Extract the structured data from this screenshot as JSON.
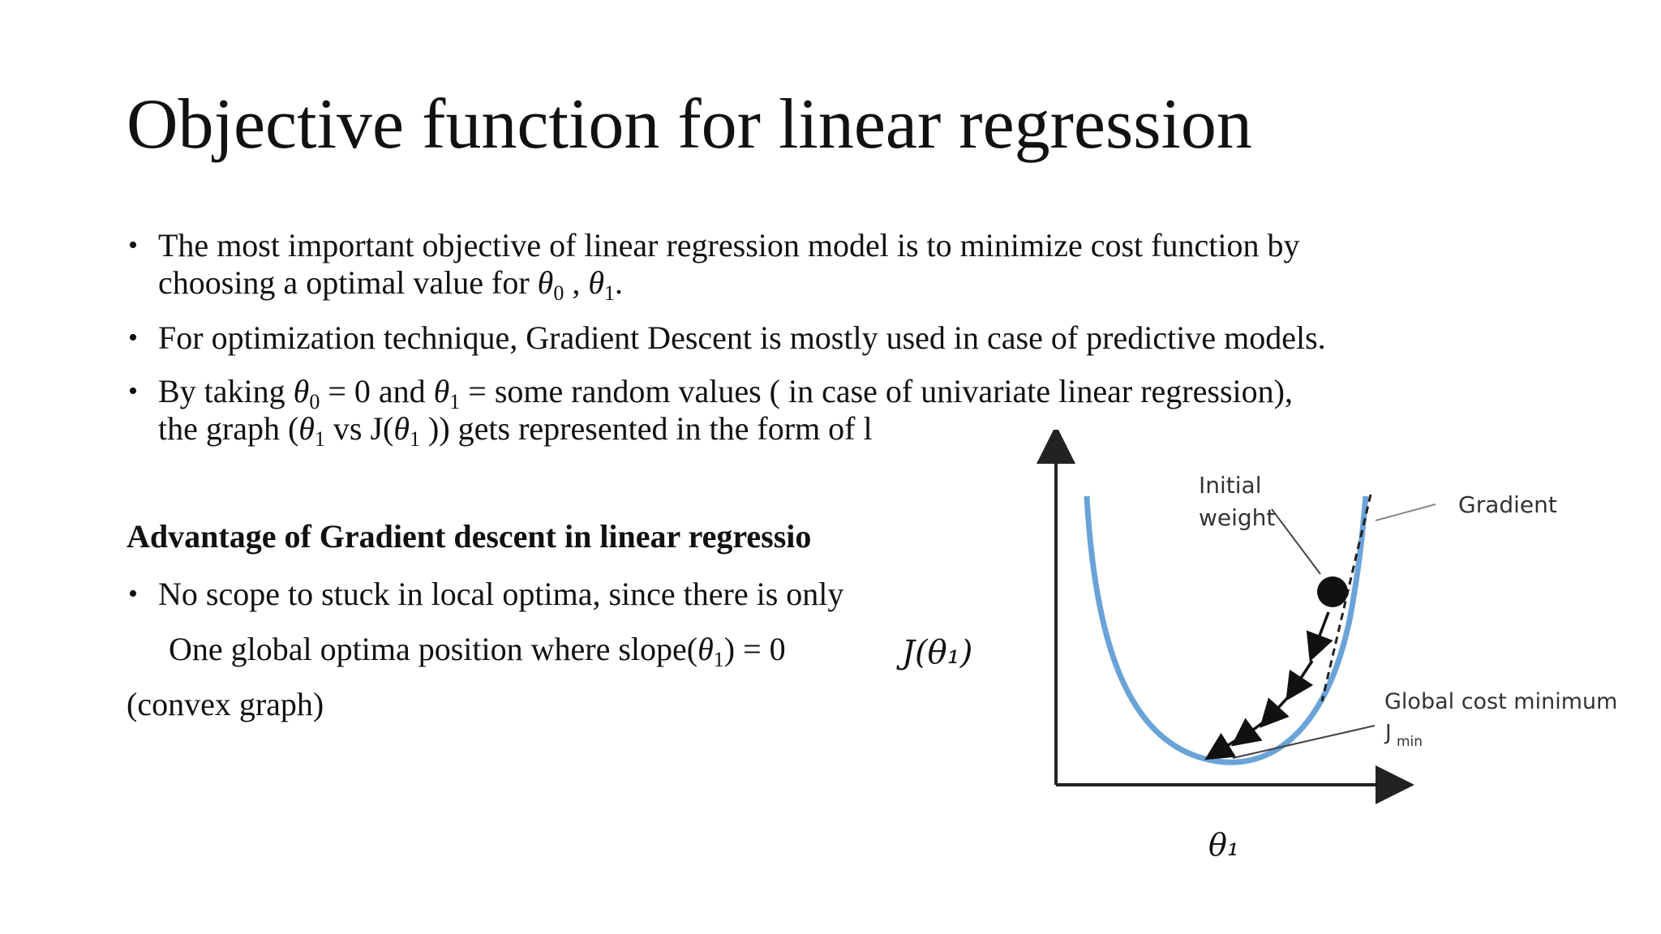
{
  "slide": {
    "title": "Objective function for linear regression",
    "bullets": [
      {
        "line1": "The most important objective of linear regression model is to minimize cost function by",
        "line2_pre": "choosing a optimal value for ",
        "line2_post": "."
      },
      {
        "line1": "For optimization technique, Gradient Descent is mostly used in case of predictive models."
      },
      {
        "line1_a": "By taking ",
        "line1_b": " = 0 and ",
        "line1_c": " = some random values ( in case of univariate linear regression),",
        "line2_a": "the graph (",
        "line2_b": " vs J(",
        "line2_c": " )) gets represented in the form of l"
      }
    ],
    "advantage_heading": "Advantage of Gradient descent in linear regressio",
    "advantage_bullet": "No scope to stuck in local optima, since there is only",
    "advantage_line2_a": "One  global optima  position where slope(",
    "advantage_line2_b": ") = 0",
    "advantage_line3": "(convex graph)"
  },
  "symbols": {
    "theta": "θ",
    "sub0": "0",
    "sub1": "1",
    "comma": " , "
  },
  "graph": {
    "y_axis_label": "J(θ₁)",
    "x_axis_label": "θ₁",
    "initial_weight_label_1": "Initial",
    "initial_weight_label_2": "weight",
    "gradient_label": "Gradient",
    "global_cost_minimum_label": "Global cost minimum",
    "jmin_label": "J",
    "jmin_sub": "min",
    "curve_color": "#6aa3d8",
    "axis_color": "#222222"
  }
}
